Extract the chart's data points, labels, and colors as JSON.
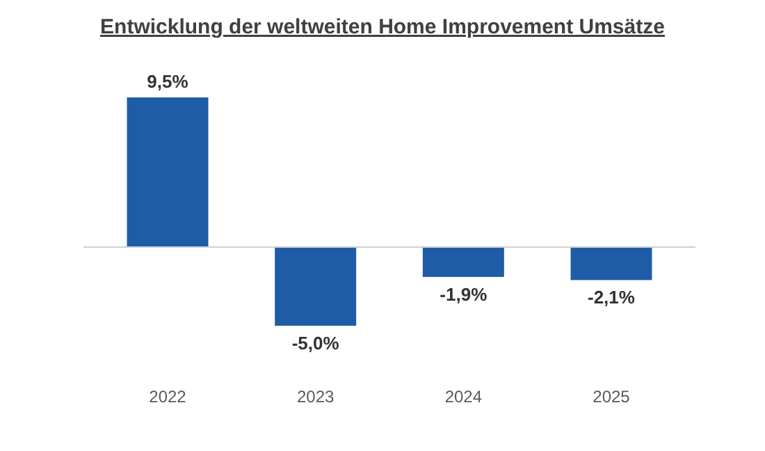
{
  "chart_data": {
    "type": "bar",
    "title": "Entwicklung der weltweiten Home Improvement Umsätze",
    "categories": [
      "2022",
      "2023",
      "2024",
      "2025"
    ],
    "values": [
      9.5,
      -5.0,
      -1.9,
      -2.1
    ],
    "value_labels": [
      "9,5%",
      "-5,0%",
      "-1,9%",
      "-2,1%"
    ],
    "color": "#1f5ca6"
  }
}
